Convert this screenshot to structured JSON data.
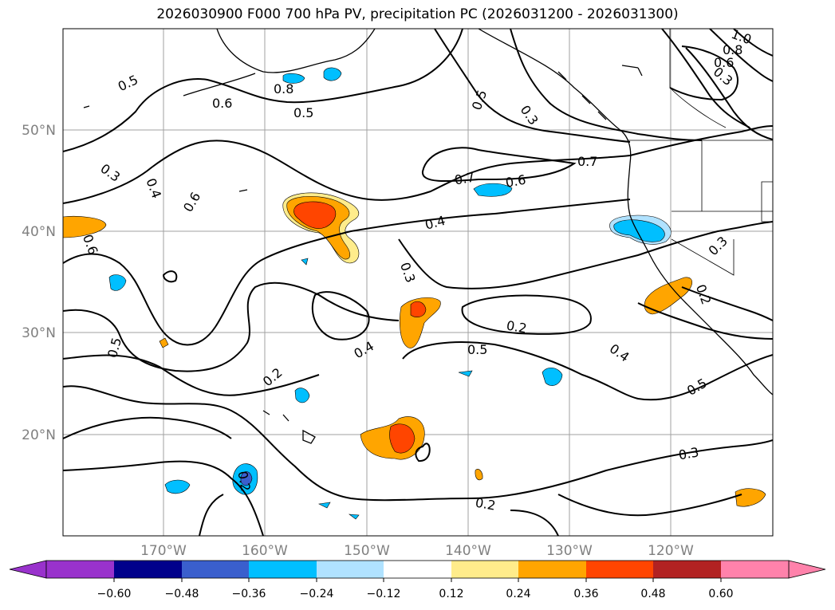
{
  "title": "2026030900 F000 700 hPa PV, precipitation PC (2026031200 - 2026031300)",
  "lat_labels": [
    "50°N",
    "40°N",
    "30°N",
    "20°N"
  ],
  "lon_labels": [
    "170°W",
    "160°W",
    "150°W",
    "140°W",
    "130°W",
    "120°W"
  ],
  "colorbar": {
    "ticks": [
      "−0.60",
      "−0.48",
      "−0.36",
      "−0.24",
      "−0.12",
      "0.12",
      "0.24",
      "0.36",
      "0.48",
      "0.60"
    ],
    "colors": [
      "#9932cc",
      "#00008b",
      "#3a5fcd",
      "#00bfff",
      "#b0e2ff",
      "#ffffff",
      "#ffec8b",
      "#ffa500",
      "#ff4500",
      "#b22222",
      "#ff82ab"
    ]
  },
  "contour_labels": [
    "0.5",
    "0.6",
    "0.8",
    "0.5",
    "0.5",
    "0.3",
    "1.0",
    "0.8",
    "0.6",
    "0.3",
    "0.3",
    "0.4",
    "0.6",
    "0.7",
    "0.6",
    "0.7",
    "0.6",
    "0.4",
    "0.3",
    "0.3",
    "0.2",
    "0.2",
    "0.5",
    "0.4",
    "0.4",
    "0.5",
    "0.2",
    "0.2",
    "0.3",
    "0.2",
    "0.5"
  ]
}
